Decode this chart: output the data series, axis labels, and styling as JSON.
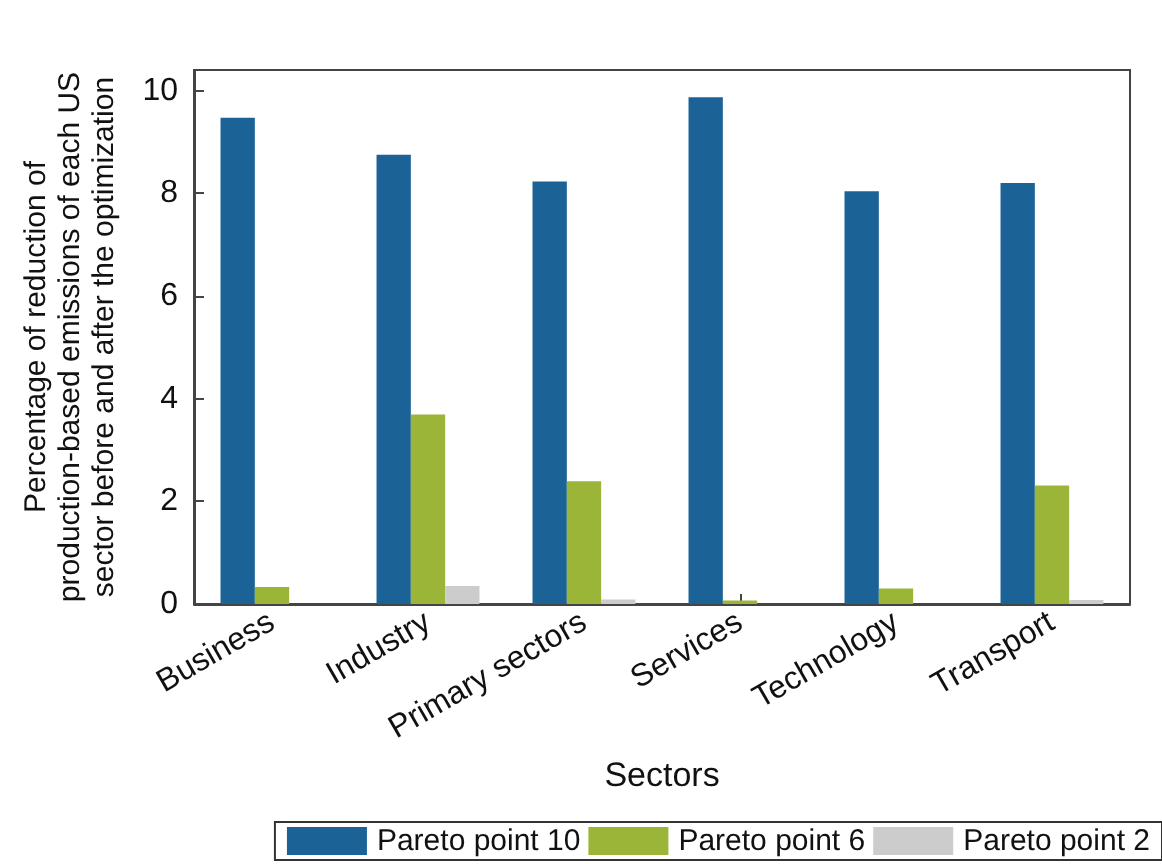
{
  "chart_data": {
    "type": "bar",
    "xlabel": "Sectors",
    "ylabel": "Percentage of reduction of\nproduction-based emissions of each US\nsector before and after the optimization",
    "categories": [
      "Business",
      "Industry",
      "Primary sectors",
      "Services",
      "Technology",
      "Transport"
    ],
    "series": [
      {
        "name": "Pareto point 10",
        "color": "#1b6396",
        "values": [
          9.47,
          8.75,
          8.23,
          9.87,
          8.04,
          8.2
        ]
      },
      {
        "name": "Pareto point 6",
        "color": "#9ab538",
        "values": [
          0.33,
          3.69,
          2.39,
          0.07,
          0.3,
          2.31
        ]
      },
      {
        "name": "Pareto point 2",
        "color": "#cccccc",
        "values": [
          0,
          0.35,
          0.09,
          0,
          0,
          0.08
        ]
      }
    ],
    "ylim": [
      0,
      10.4
    ],
    "yticks": [
      0,
      2,
      4,
      6,
      8,
      10
    ],
    "grid": false,
    "legend": "bottom"
  }
}
